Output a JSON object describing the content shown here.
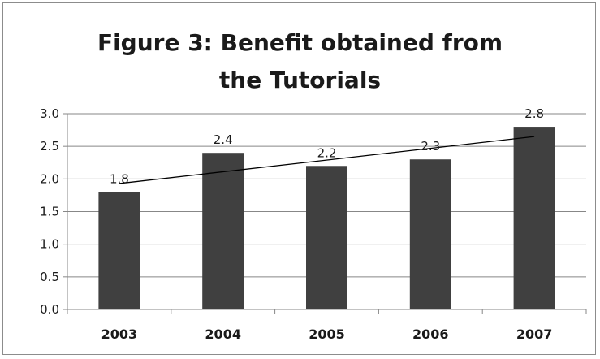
{
  "chart_data": {
    "type": "bar",
    "title_lines": [
      "Figure 3: Benefit obtained from",
      "the Tutorials"
    ],
    "title": "Figure 3: Benefit obtained from the Tutorials",
    "xlabel": "",
    "ylabel": "",
    "categories": [
      "2003",
      "2004",
      "2005",
      "2006",
      "2007"
    ],
    "values": [
      1.8,
      2.4,
      2.2,
      2.3,
      2.8
    ],
    "data_labels": [
      "1.8",
      "2.4",
      "2.2",
      "2.3",
      "2.8"
    ],
    "yticks": [
      0.0,
      0.5,
      1.0,
      1.5,
      2.0,
      2.5,
      3.0
    ],
    "ytick_labels": [
      "0.0",
      "0.5",
      "1.0",
      "1.5",
      "2.0",
      "2.5",
      "3.0"
    ],
    "ylim": [
      0,
      3.0
    ],
    "grid": true,
    "legend": "none",
    "trendline": {
      "type": "linear",
      "start": 1.93,
      "end": 2.65
    },
    "colors": {
      "bar": "#404040",
      "grid": "#878787",
      "axis": "#878787",
      "trendline": "#000000",
      "text": "#1a1a1a"
    }
  }
}
